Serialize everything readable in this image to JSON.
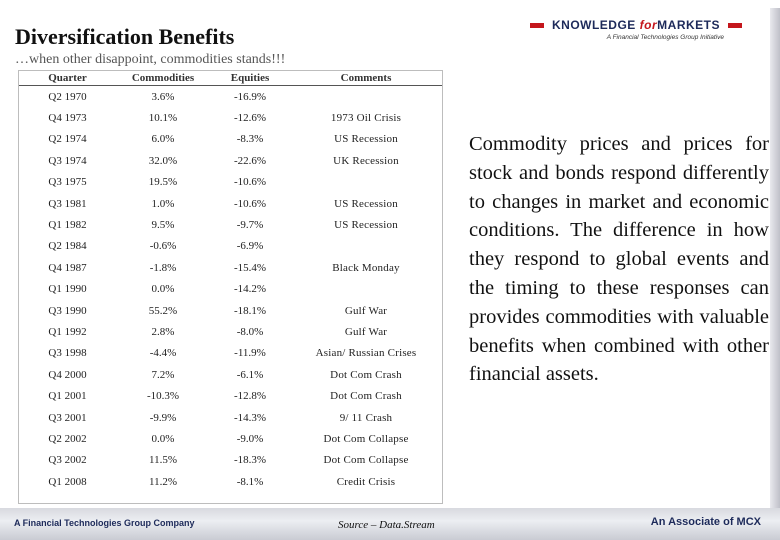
{
  "slide": {
    "title": "Diversification Benefits",
    "subtitle": "…when other disappoint, commodities stands!!!",
    "logo": {
      "main_prefix": "KNOWLEDGE ",
      "main_for": "for",
      "main_suffix": "MARKETS",
      "tagline": "A Financial Technologies Group Initiative"
    },
    "table": {
      "headers": [
        "Quarter",
        "Commodities",
        "Equities",
        "Comments"
      ],
      "rows": [
        [
          "Q2 1970",
          "3.6%",
          "-16.9%",
          ""
        ],
        [
          "Q4 1973",
          "10.1%",
          "-12.6%",
          "1973 Oil Crisis"
        ],
        [
          "Q2 1974",
          "6.0%",
          "-8.3%",
          "US Recession"
        ],
        [
          "Q3 1974",
          "32.0%",
          "-22.6%",
          "UK Recession"
        ],
        [
          "Q3 1975",
          "19.5%",
          "-10.6%",
          ""
        ],
        [
          "Q3 1981",
          "1.0%",
          "-10.6%",
          "US Recession"
        ],
        [
          "Q1 1982",
          "9.5%",
          "-9.7%",
          "US Recession"
        ],
        [
          "Q2 1984",
          "-0.6%",
          "-6.9%",
          ""
        ],
        [
          "Q4 1987",
          "-1.8%",
          "-15.4%",
          "Black Monday"
        ],
        [
          "Q1 1990",
          "0.0%",
          "-14.2%",
          ""
        ],
        [
          "Q3 1990",
          "55.2%",
          "-18.1%",
          "Gulf War"
        ],
        [
          "Q1 1992",
          "2.8%",
          "-8.0%",
          "Gulf War"
        ],
        [
          "Q3 1998",
          "-4.4%",
          "-11.9%",
          "Asian/ Russian Crises"
        ],
        [
          "Q4 2000",
          "7.2%",
          "-6.1%",
          "Dot Com Crash"
        ],
        [
          "Q1 2001",
          "-10.3%",
          "-12.8%",
          "Dot Com Crash"
        ],
        [
          "Q3 2001",
          "-9.9%",
          "-14.3%",
          "9/ 11 Crash"
        ],
        [
          "Q2 2002",
          "0.0%",
          "-9.0%",
          "Dot Com Collapse"
        ],
        [
          "Q3 2002",
          "11.5%",
          "-18.3%",
          "Dot Com Collapse"
        ],
        [
          "Q1 2008",
          "11.2%",
          "-8.1%",
          "Credit Crisis"
        ]
      ]
    },
    "body_text": "Commodity prices and prices for stock and bonds respond differently to changes in market and economic conditions. The difference in how they respond to global events and the timing to these responses can provides commodities with valuable benefits when combined with other financial assets.",
    "source": "Source – Data.Stream",
    "footer": {
      "left": "A Financial Technologies Group Company",
      "right": "An Associate of MCX"
    },
    "colors": {
      "brand_navy": "#1d2a5a",
      "brand_red": "#c4161c"
    }
  }
}
